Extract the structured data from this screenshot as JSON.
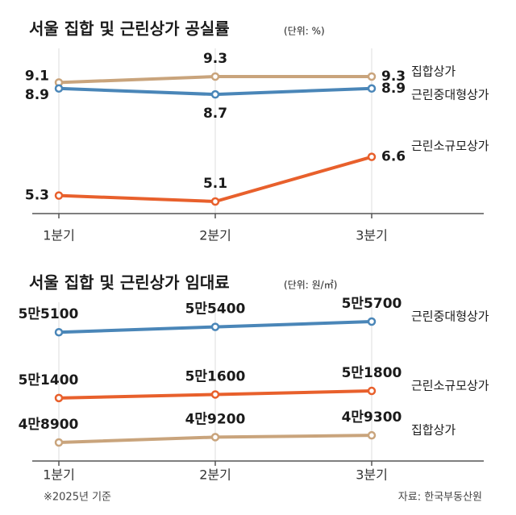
{
  "chart_data": [
    {
      "type": "line",
      "title": "서울 집합 및 근린상가 공실률",
      "subtitle": "(단위: %)",
      "categories": [
        "1분기",
        "2분기",
        "3분기"
      ],
      "series": [
        {
          "name": "집합상가",
          "color": "#c9a47c",
          "values": [
            9.1,
            9.3,
            9.3
          ]
        },
        {
          "name": "근린중대형상가",
          "color": "#4a86b8",
          "values": [
            8.9,
            8.7,
            8.9
          ]
        },
        {
          "name": "근린소규모상가",
          "color": "#e8602c",
          "values": [
            5.3,
            5.1,
            6.6
          ]
        }
      ]
    },
    {
      "type": "line",
      "title": "서울 집합 및 근린상가 임대료",
      "subtitle": "(단위: 원/㎡)",
      "categories": [
        "1분기",
        "2분기",
        "3분기"
      ],
      "series": [
        {
          "name": "근린중대형상가",
          "color": "#4a86b8",
          "values": [
            55100,
            55400,
            55700
          ],
          "value_labels": [
            "5만5100",
            "5만5400",
            "5만5700"
          ]
        },
        {
          "name": "근린소규모상가",
          "color": "#e8602c",
          "values": [
            51400,
            51600,
            51800
          ],
          "value_labels": [
            "5만1400",
            "5만1600",
            "5만1800"
          ]
        },
        {
          "name": "집합상가",
          "color": "#c9a47c",
          "values": [
            48900,
            49200,
            49300
          ],
          "value_labels": [
            "4만8900",
            "4만9200",
            "4만9300"
          ]
        }
      ],
      "note": "※2025년 기준",
      "source": "자료: 한국부동산원"
    }
  ]
}
